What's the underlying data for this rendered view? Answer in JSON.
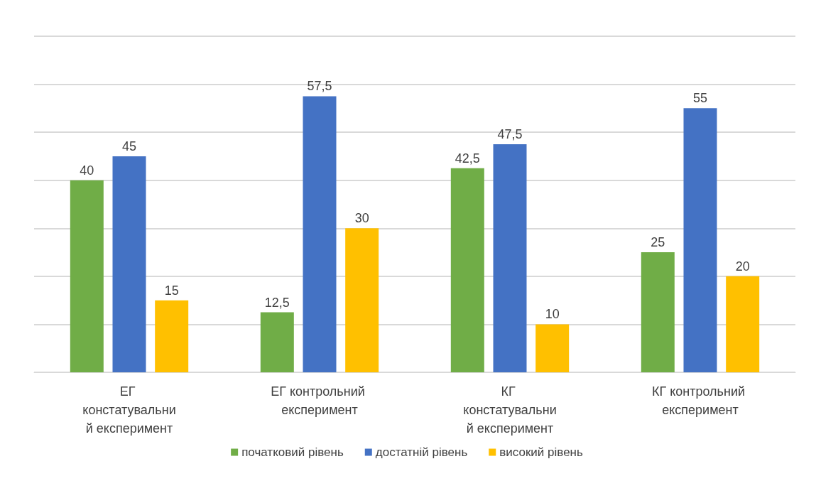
{
  "chart_data": {
    "type": "bar",
    "categories": [
      "ЕГ констатувальний експеримент",
      "ЕГ контрольний експеримент",
      "КГ констатувальний експеримент",
      "КГ контрольний експеримент"
    ],
    "series": [
      {
        "name": "початковий рівень",
        "color": "#70ad47",
        "values": [
          40,
          12.5,
          42.5,
          25
        ],
        "value_labels": [
          "40",
          "12,5",
          "42,5",
          "25"
        ]
      },
      {
        "name": "достатній рівень",
        "color": "#4472c4",
        "values": [
          45,
          57.5,
          47.5,
          55
        ],
        "value_labels": [
          "45",
          "57,5",
          "47,5",
          "55"
        ]
      },
      {
        "name": "високий рівень",
        "color": "#ffc000",
        "values": [
          15,
          30,
          10,
          20
        ],
        "value_labels": [
          "15",
          "30",
          "10",
          "20"
        ]
      }
    ],
    "ylim": [
      0,
      70
    ],
    "yticks": [
      {
        "value": 0,
        "label": null
      },
      {
        "value": 10,
        "label": null
      },
      {
        "value": 20,
        "label": null
      },
      {
        "value": 30,
        "label": null
      },
      {
        "value": 40,
        "label": null
      },
      {
        "value": 50,
        "label": null
      },
      {
        "value": 60,
        "label": null
      },
      {
        "value": 70,
        "label": null
      }
    ],
    "grid": "y",
    "legend": "bottom",
    "tick_labels": "x"
  }
}
